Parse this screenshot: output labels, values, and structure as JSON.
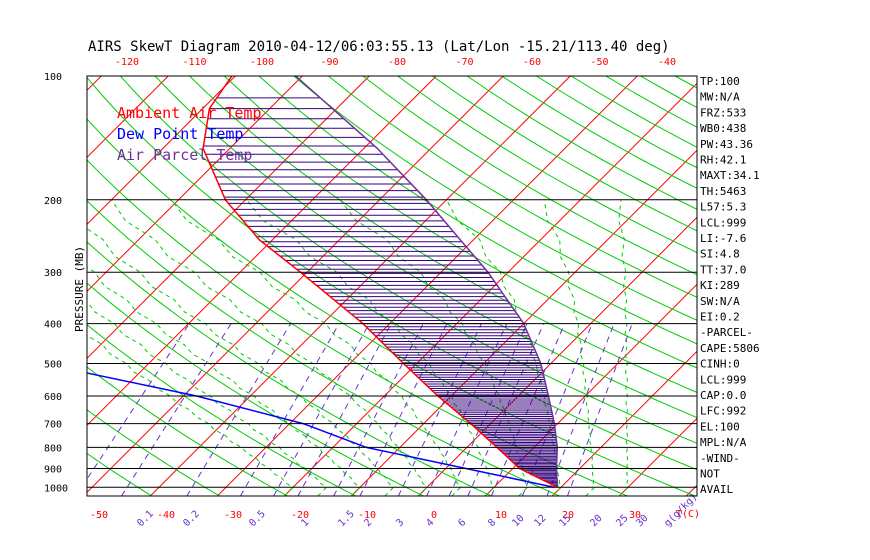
{
  "title": "AIRS SkewT Diagram 2010-04-12/06:03:55.13 (Lat/Lon -15.21/113.40 deg)",
  "legend": [
    {
      "label": "Ambient Air Temp",
      "color": "#ff0000"
    },
    {
      "label": "Dew Point Temp",
      "color": "#0000ff"
    },
    {
      "label": "Air Parcel Temp",
      "color": "#7030a0"
    }
  ],
  "colors": {
    "isotherm": "#ff0000",
    "dry_adiabat": "#00cc00",
    "moist_adiabat": "#00cc00",
    "mixing_ratio": "#6633cc",
    "temperature": "#ff0000",
    "dewpoint": "#0000ff",
    "parcel": "#7030a0",
    "cape_hatch": "#33007a"
  },
  "chart_data": {
    "type": "line",
    "title": "AIRS SkewT Diagram 2010-04-12/06:03:55.13 (Lat/Lon -15.21/113.40 deg)",
    "ylabel": "PRESSURE (MB)",
    "xlabel": "T(C)",
    "y_scale": "log",
    "y_range": [
      1000,
      100
    ],
    "pressure_ticks": [
      100,
      200,
      300,
      400,
      500,
      600,
      700,
      800,
      900,
      1000
    ],
    "bottom_temp_ticks": [
      -50,
      -40,
      -30,
      -20,
      -10,
      0,
      10,
      20,
      30
    ],
    "top_temp_ticks": [
      -120,
      -110,
      -100,
      -90,
      -80,
      -70,
      -60,
      -50,
      -40
    ],
    "mixing_ratio_labels": [
      "0.1",
      "0.2",
      "0.5",
      "1",
      "1.5",
      "2",
      "3",
      "4",
      "6",
      "8",
      "10",
      "12",
      "15",
      "20",
      "25",
      "30",
      "g(g/kg)"
    ],
    "series": [
      {
        "name": "Ambient Air Temp",
        "points": [
          [
            1000,
            29.5
          ],
          [
            900,
            21
          ],
          [
            800,
            14.5
          ],
          [
            700,
            7
          ],
          [
            600,
            -2
          ],
          [
            500,
            -12
          ],
          [
            400,
            -24
          ],
          [
            300,
            -41
          ],
          [
            250,
            -52
          ],
          [
            200,
            -63
          ],
          [
            150,
            -74
          ],
          [
            120,
            -79
          ],
          [
            100,
            -80.5
          ]
        ]
      },
      {
        "name": "Dew Point Temp",
        "points": [
          [
            1000,
            29
          ],
          [
            900,
            13
          ],
          [
            800,
            -5
          ],
          [
            700,
            -18
          ],
          [
            600,
            -38
          ],
          [
            500,
            -66
          ],
          [
            400,
            -86
          ],
          [
            300,
            -93
          ],
          [
            250,
            -94
          ],
          [
            200,
            -105
          ],
          [
            150,
            -116
          ],
          [
            100,
            -126
          ]
        ]
      },
      {
        "name": "Air Parcel Temp",
        "points": [
          [
            1000,
            29.5
          ],
          [
            900,
            26.5
          ],
          [
            800,
            23.5
          ],
          [
            700,
            19.5
          ],
          [
            600,
            14.5
          ],
          [
            500,
            8.5
          ],
          [
            400,
            0
          ],
          [
            300,
            -13
          ],
          [
            250,
            -22
          ],
          [
            200,
            -33
          ],
          [
            150,
            -48
          ],
          [
            100,
            -71
          ]
        ]
      }
    ],
    "indices": [
      "TP:100",
      "MW:N/A",
      "FRZ:533",
      "WB0:438",
      "PW:43.36",
      "RH:42.1",
      "MAXT:34.1",
      "TH:5463",
      "L57:5.3",
      "LCL:999",
      "LI:-7.6",
      "SI:4.8",
      "TT:37.0",
      "KI:289",
      "SW:N/A",
      "EI:0.2",
      "-PARCEL-",
      "CAPE:5806",
      "CINH:0",
      "LCL:999",
      "CAP:0.0",
      "LFC:992",
      "EL:100",
      "MPL:N/A",
      "-WIND-",
      "NOT",
      "AVAIL"
    ]
  }
}
